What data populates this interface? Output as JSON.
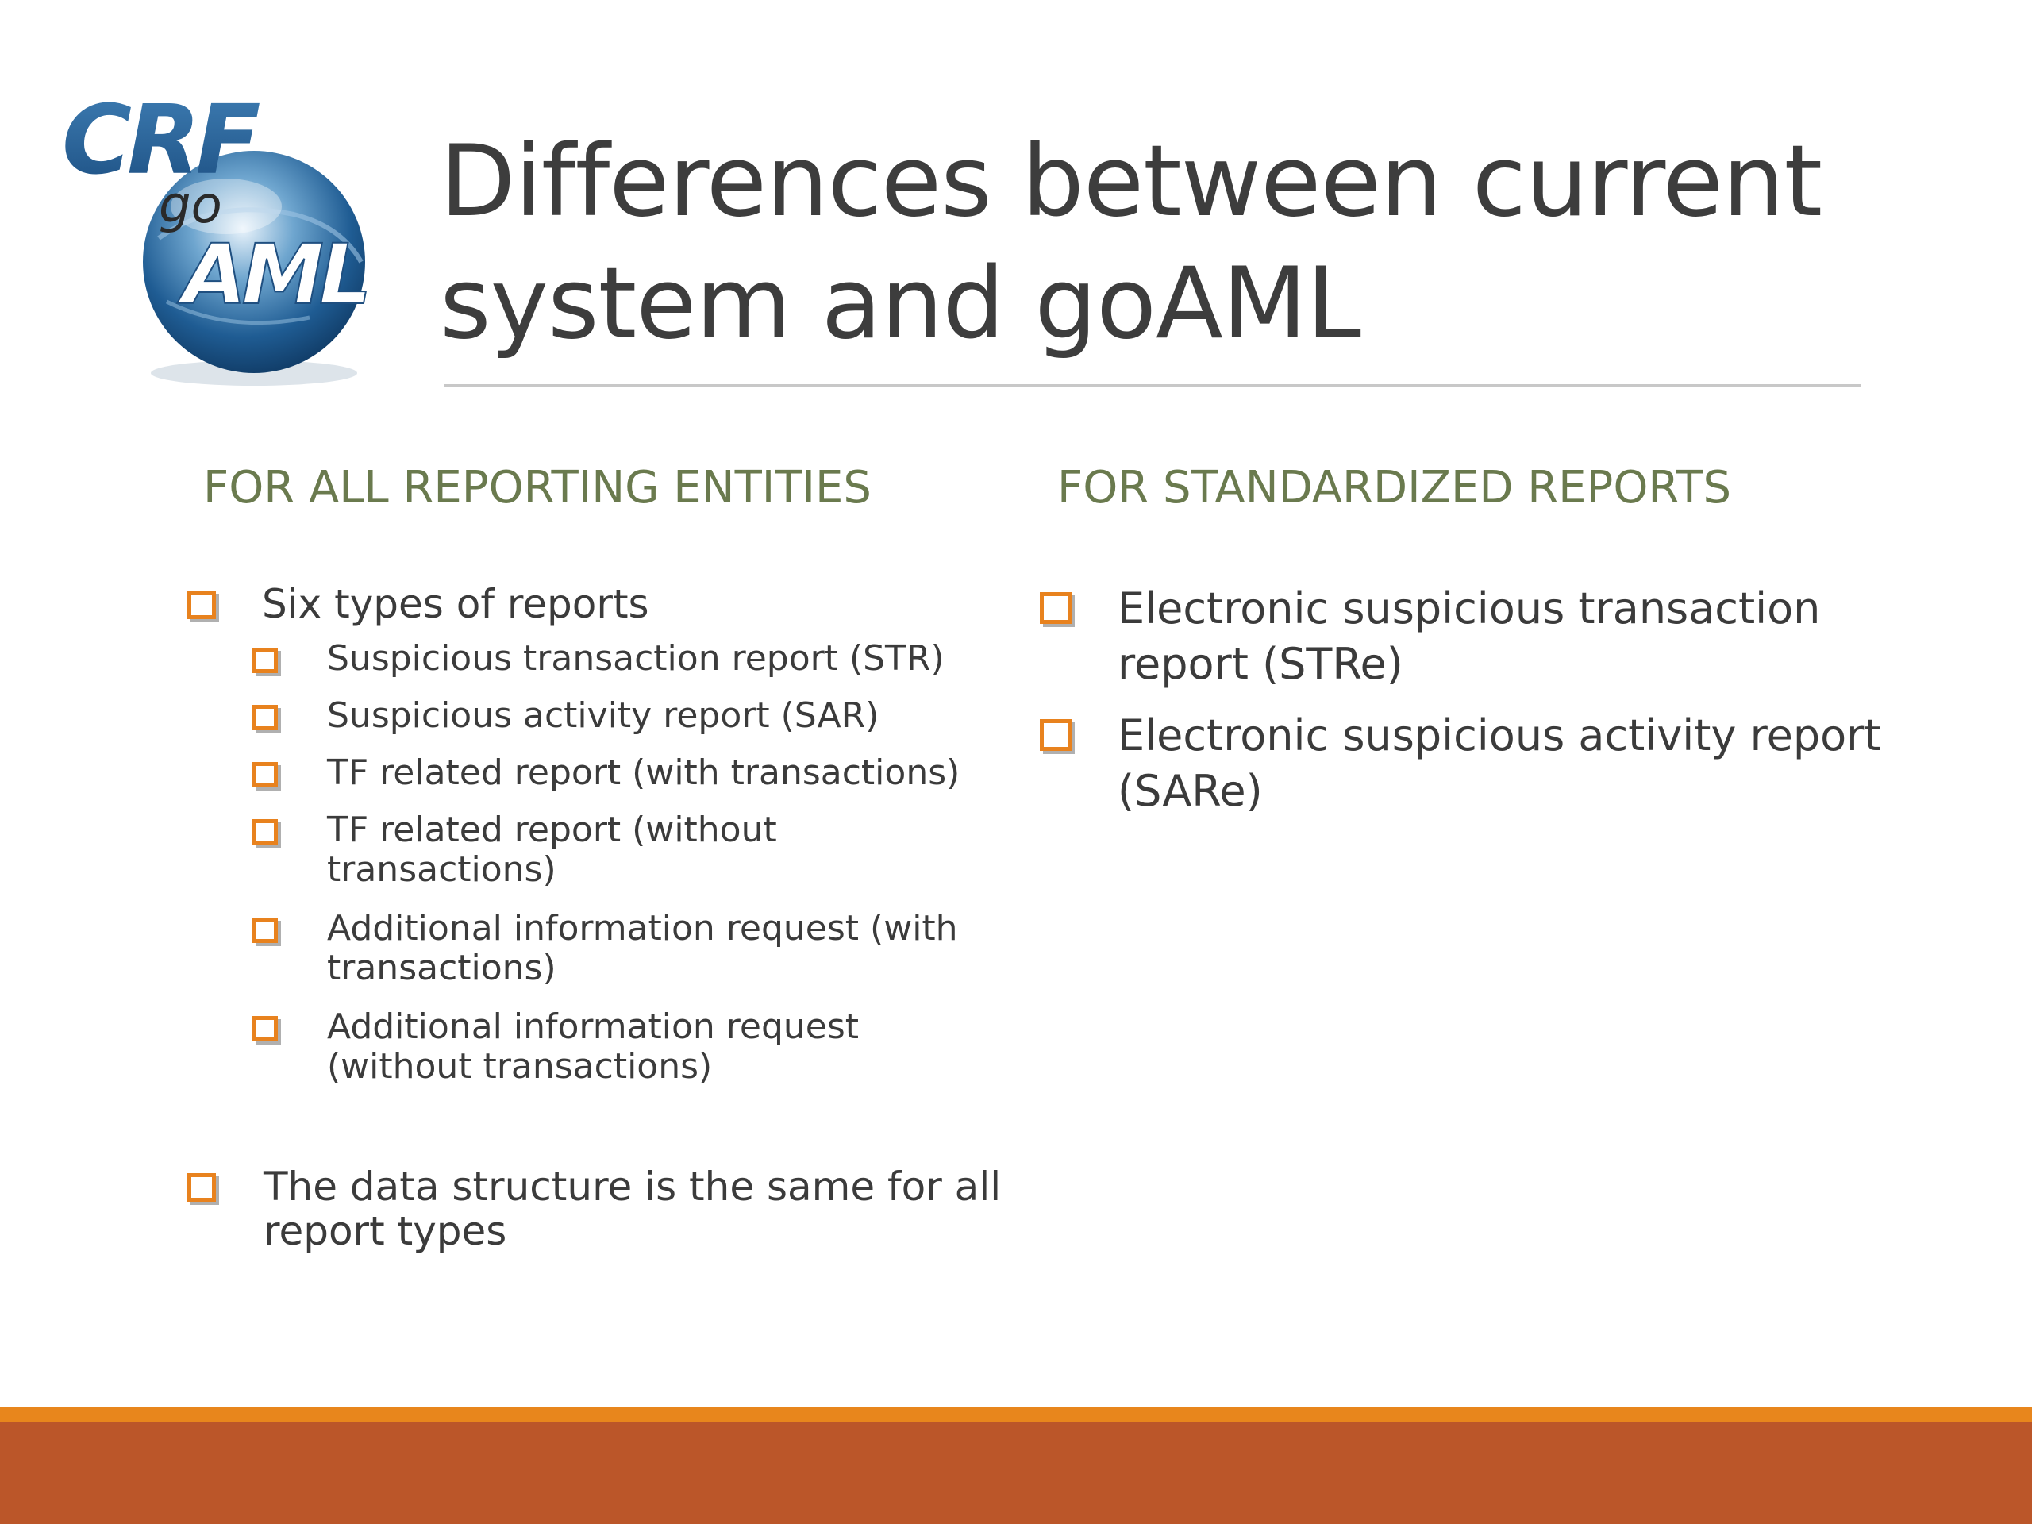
{
  "logo": {
    "text_top": "CRF",
    "text_mid": "go",
    "text_bottom": "AML"
  },
  "title": {
    "line1": "Differences between current",
    "line2": "system and goAML"
  },
  "left_column": {
    "heading": "FOR ALL REPORTING ENTITIES",
    "item_main": "Six types of reports",
    "sub_items": [
      {
        "lines": [
          "Suspicious transaction report (STR)"
        ]
      },
      {
        "lines": [
          "Suspicious activity report (SAR)"
        ]
      },
      {
        "lines": [
          "TF related report (with transactions)"
        ]
      },
      {
        "lines": [
          "TF related report (without",
          "transactions)"
        ]
      },
      {
        "lines": [
          "Additional information request (with",
          "transactions)"
        ]
      },
      {
        "lines": [
          "Additional information request",
          "(without transactions)"
        ]
      }
    ],
    "item_last": {
      "lines": [
        "The data structure is the same for all",
        "report types"
      ]
    }
  },
  "right_column": {
    "heading": "FOR STANDARDIZED REPORTS",
    "items": [
      {
        "lines": [
          "Electronic suspicious transaction",
          "report (STRe)"
        ]
      },
      {
        "lines": [
          "Electronic suspicious activity report",
          "(SARe)"
        ]
      }
    ]
  },
  "colors": {
    "bullet": "#e8821e",
    "heading": "#6a7a4e",
    "band_orange": "#e8861c",
    "band_rust": "#bb5629"
  }
}
